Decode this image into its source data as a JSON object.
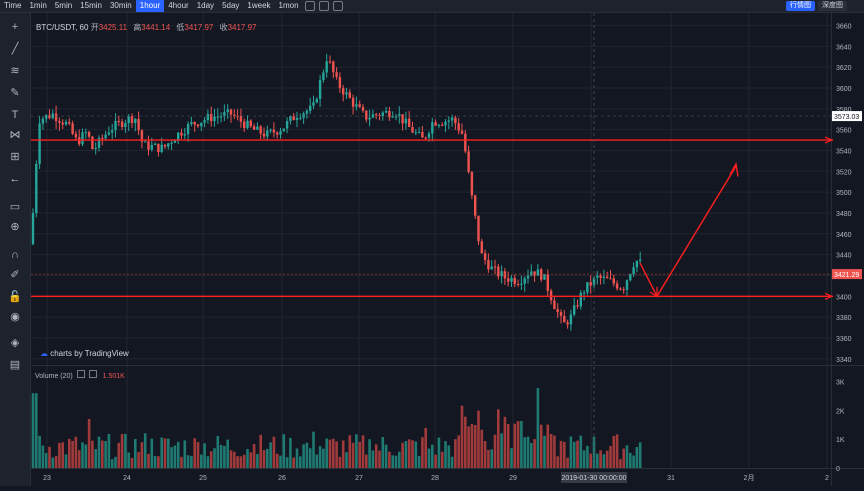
{
  "toolbar": {
    "timeframes": [
      "Time",
      "1min",
      "5min",
      "15min",
      "30min",
      "1hour",
      "4hour",
      "1day",
      "5day",
      "1week",
      "1mon"
    ],
    "active": "1hour",
    "right_buttons": [
      {
        "label": "行情图",
        "bg": "#2962ff",
        "color": "#ffffff"
      },
      {
        "label": "深度图",
        "bg": "#2a2e39",
        "color": "#d1d4dc"
      }
    ]
  },
  "legend": {
    "symbol": "BTC/USDT, 60",
    "open_label": "开",
    "open": "3425.11",
    "high_label": "高",
    "high": "3441.14",
    "low_label": "低",
    "low": "3417.97",
    "close_label": "收",
    "close": "3417.97"
  },
  "volume_legend": {
    "label": "Volume (20)",
    "value": "1.501K"
  },
  "watermark": "charts by TradingView",
  "sidebar_icons": [
    "crosshair-icon",
    "trend-line-icon",
    "fib-icon",
    "brush-icon",
    "text-icon",
    "pattern-icon",
    "measure-icon",
    "back-arrow-icon",
    "ruler-icon",
    "zoom-icon",
    "magnet-icon",
    "lock-drawing-icon",
    "lock-icon",
    "eye-icon",
    "layers-icon",
    "trash-icon"
  ],
  "colors": {
    "up": "#26a69a",
    "down": "#ef5350",
    "line": "#ff1f1f",
    "bg": "#131722"
  },
  "chart_data": {
    "type": "candlestick",
    "price_axis": {
      "min": 3340,
      "max": 3660,
      "ticks": [
        3340,
        3360,
        3380,
        3400,
        3420,
        3440,
        3460,
        3480,
        3500,
        3520,
        3540,
        3560,
        3580,
        3600,
        3620,
        3640,
        3660
      ]
    },
    "price_labels": [
      {
        "value": 3573.03,
        "text": "3573.03",
        "bg": "#ffffff",
        "color": "#131722"
      },
      {
        "value": 3421.29,
        "text": "3421.29",
        "bg": "#ef5350",
        "color": "#ffffff"
      }
    ],
    "x_labels": [
      "23",
      "24",
      "25",
      "26",
      "27",
      "28",
      "29",
      "30",
      "31",
      "2月",
      "2"
    ],
    "crosshair_label": "2019-01-30 00:00:00",
    "volume_axis": {
      "ticks": [
        "3K",
        "2K",
        "1K",
        "0"
      ]
    },
    "horizontal_lines": [
      3550,
      3400
    ],
    "dashed_level": 3421.29
  }
}
